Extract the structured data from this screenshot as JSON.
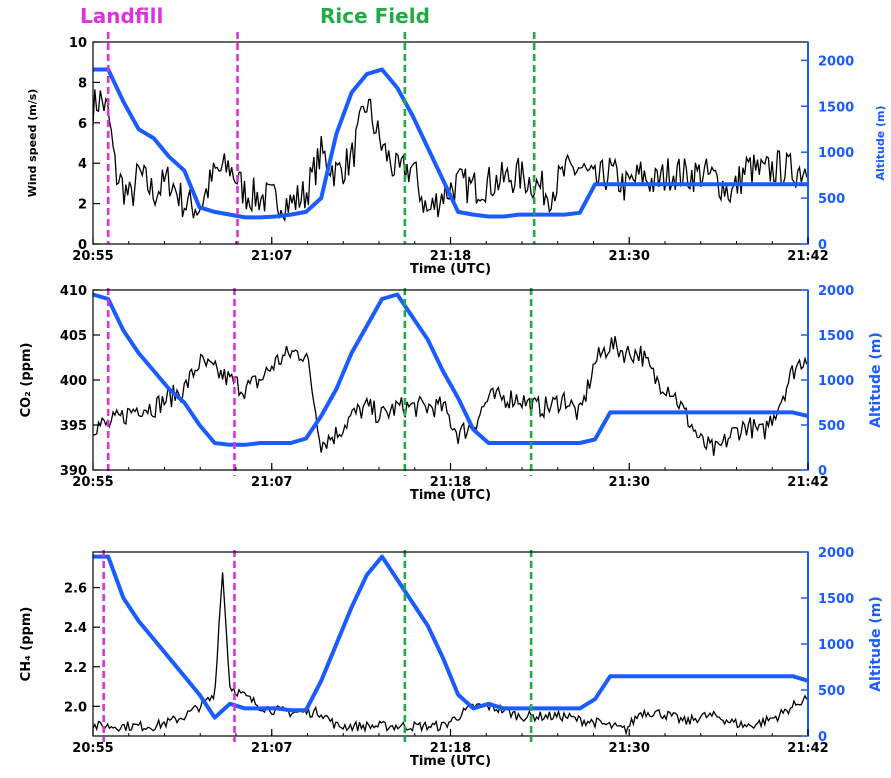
{
  "header": {
    "landfill_label": "Landfill",
    "rice_label": "Rice Field"
  },
  "colors": {
    "measurement": "#000000",
    "altitude": "#1a5cff",
    "landfill_marker": "#dd33dd",
    "rice_marker": "#22aa44",
    "axis_right": "#1a5cff"
  },
  "chart_data": [
    {
      "type": "line",
      "xlabel": "Time (UTC)",
      "xticks": [
        "20:55",
        "21:07",
        "21:18",
        "21:30",
        "21:42"
      ],
      "xlim_minutes_after_2055": [
        0,
        47
      ],
      "ylabel": "Wind speed (m/s)",
      "ylim": [
        0,
        10
      ],
      "yticks": [
        "0",
        "2",
        "4",
        "6",
        "8",
        "10"
      ],
      "y2label": "Altitude (m)",
      "y2lim": [
        0,
        2200
      ],
      "y2ticks": [
        "0",
        "500",
        "1000",
        "1500",
        "2000"
      ],
      "series": [
        {
          "axis": "left",
          "x": [
            0,
            0.5,
            1,
            1.5,
            2,
            2.5,
            3,
            4,
            5,
            6,
            7,
            8,
            9,
            10,
            11,
            12,
            13,
            14,
            15,
            16,
            17,
            18,
            19,
            20,
            21,
            22,
            23,
            24,
            25,
            26,
            27,
            28,
            29,
            30,
            31,
            32,
            33,
            34,
            35,
            36,
            37,
            38,
            39,
            40,
            41,
            42,
            43,
            44,
            45,
            46,
            47
          ],
          "y": [
            6.8,
            7.2,
            6.5,
            3.5,
            2.8,
            2.2,
            3.5,
            2.5,
            3.2,
            2.0,
            1.8,
            3.5,
            3.8,
            2.5,
            2.3,
            2.2,
            2.0,
            2.5,
            4.5,
            3.5,
            4.2,
            7.0,
            4.8,
            3.5,
            3.8,
            1.5,
            2.5,
            3.0,
            2.8,
            3.0,
            3.2,
            3.4,
            3.0,
            2.5,
            3.5,
            3.8,
            3.0,
            3.6,
            2.8,
            3.4,
            3.0,
            3.6,
            3.4,
            3.5,
            3.2,
            2.5,
            3.8,
            3.5,
            3.8,
            3.6,
            3.8
          ],
          "noise": 0.9
        },
        {
          "axis": "right",
          "x": [
            0,
            1,
            2,
            3,
            4,
            5,
            6,
            7,
            8,
            9,
            10,
            11,
            12,
            13,
            14,
            15,
            16,
            17,
            18,
            19,
            20,
            21,
            22,
            23,
            24,
            25,
            26,
            27,
            28,
            29,
            30,
            31,
            32,
            33,
            34,
            35,
            36,
            37,
            38,
            39,
            40,
            41,
            42,
            43,
            44,
            45,
            46,
            47
          ],
          "y": [
            1900,
            1900,
            1550,
            1250,
            1150,
            950,
            800,
            400,
            350,
            320,
            290,
            290,
            300,
            320,
            350,
            500,
            1200,
            1650,
            1850,
            1900,
            1700,
            1400,
            1050,
            700,
            350,
            320,
            300,
            300,
            320,
            320,
            320,
            320,
            340,
            650,
            650,
            650,
            650,
            650,
            650,
            650,
            650,
            650,
            650,
            650,
            650,
            650,
            650,
            650
          ],
          "noise": 0
        }
      ],
      "markers": [
        {
          "group": "landfill",
          "x": 1.0
        },
        {
          "group": "landfill",
          "x": 9.5
        },
        {
          "group": "rice",
          "x": 20.5
        },
        {
          "group": "rice",
          "x": 29.0
        }
      ]
    },
    {
      "type": "line",
      "xlabel": "Time (UTC)",
      "xticks": [
        "20:55",
        "21:07",
        "21:18",
        "21:30",
        "21:42"
      ],
      "xlim_minutes_after_2055": [
        0,
        47
      ],
      "ylabel": "CO₂ (ppm)",
      "ylim": [
        390,
        410
      ],
      "yticks": [
        "390",
        "395",
        "400",
        "405",
        "410"
      ],
      "y2label": "Altitude (m)",
      "y2lim": [
        0,
        2000
      ],
      "y2ticks": [
        "0",
        "500",
        "1000",
        "1500",
        "2000"
      ],
      "series": [
        {
          "axis": "left",
          "x": [
            0,
            0.5,
            1,
            2,
            3,
            4,
            5,
            6,
            7,
            8,
            9,
            10,
            11,
            12,
            13,
            14,
            15,
            16,
            17,
            18,
            19,
            20,
            21,
            22,
            23,
            24,
            25,
            26,
            27,
            28,
            29,
            30,
            31,
            32,
            33,
            34,
            35,
            36,
            37,
            38,
            39,
            40,
            41,
            42,
            43,
            44,
            45,
            46,
            47
          ],
          "y": [
            395,
            395,
            395,
            396,
            397,
            397,
            398,
            399,
            402,
            401,
            400,
            399,
            400,
            402,
            403,
            403,
            393,
            394,
            396,
            397,
            396,
            397,
            397,
            397,
            397,
            394,
            395,
            398,
            398,
            398,
            397,
            397,
            398,
            396,
            402,
            404,
            403,
            403,
            400,
            399,
            396,
            393,
            392,
            394,
            395,
            394,
            397,
            401,
            403
          ],
          "noise": 1.2
        },
        {
          "axis": "right",
          "x": [
            0,
            1,
            2,
            3,
            4,
            5,
            6,
            7,
            8,
            9,
            10,
            11,
            12,
            13,
            14,
            15,
            16,
            17,
            18,
            19,
            20,
            21,
            22,
            23,
            24,
            25,
            26,
            27,
            28,
            29,
            30,
            31,
            32,
            33,
            34,
            35,
            36,
            37,
            38,
            39,
            40,
            41,
            42,
            43,
            44,
            45,
            46,
            47
          ],
          "y": [
            1950,
            1900,
            1550,
            1300,
            1100,
            900,
            750,
            500,
            300,
            280,
            280,
            300,
            300,
            300,
            350,
            600,
            900,
            1300,
            1600,
            1900,
            1950,
            1700,
            1450,
            1100,
            800,
            450,
            300,
            300,
            300,
            300,
            300,
            300,
            300,
            340,
            640,
            640,
            640,
            640,
            640,
            640,
            640,
            640,
            640,
            640,
            640,
            640,
            640,
            600
          ],
          "noise": 0
        }
      ],
      "markers": [
        {
          "group": "landfill",
          "x": 1.0
        },
        {
          "group": "landfill",
          "x": 9.3
        },
        {
          "group": "rice",
          "x": 20.5
        },
        {
          "group": "rice",
          "x": 28.8
        }
      ]
    },
    {
      "type": "line",
      "xlabel": "Time (UTC)",
      "xticks": [
        "20:55",
        "21:07",
        "21:18",
        "21:30",
        "21:42"
      ],
      "xlim_minutes_after_2055": [
        0,
        47
      ],
      "ylabel": "CH₄ (ppm)",
      "ylim": [
        1.85,
        2.78
      ],
      "yticks": [
        "2.0",
        "2.2",
        "2.4",
        "2.6"
      ],
      "y2label": "Altitude (m)",
      "y2lim": [
        0,
        2000
      ],
      "y2ticks": [
        "0",
        "500",
        "1000",
        "1500",
        "2000"
      ],
      "series": [
        {
          "axis": "left",
          "x": [
            0,
            1,
            2,
            3,
            4,
            5,
            6,
            7,
            8,
            8.5,
            9,
            10,
            11,
            12,
            13,
            14,
            15,
            16,
            17,
            18,
            19,
            20,
            21,
            22,
            23,
            24,
            25,
            26,
            27,
            28,
            29,
            30,
            31,
            32,
            33,
            34,
            35,
            36,
            37,
            38,
            39,
            40,
            41,
            42,
            43,
            44,
            45,
            46,
            47
          ],
          "y": [
            1.9,
            1.9,
            1.9,
            1.9,
            1.9,
            1.92,
            1.95,
            2.0,
            2.05,
            2.7,
            2.1,
            2.05,
            2.0,
            1.98,
            1.97,
            1.97,
            1.97,
            1.9,
            1.9,
            1.9,
            1.9,
            1.9,
            1.9,
            1.9,
            1.9,
            1.95,
            2.0,
            2.0,
            1.98,
            1.95,
            1.95,
            1.95,
            1.95,
            1.93,
            1.92,
            1.9,
            1.88,
            1.97,
            1.97,
            1.95,
            1.92,
            1.95,
            1.95,
            1.92,
            1.9,
            1.92,
            1.95,
            2.0,
            2.05
          ],
          "noise": 0.025
        },
        {
          "axis": "right",
          "x": [
            0,
            1,
            2,
            3,
            4,
            5,
            6,
            7,
            8,
            9,
            10,
            11,
            12,
            13,
            14,
            15,
            16,
            17,
            18,
            19,
            20,
            21,
            22,
            23,
            24,
            25,
            26,
            27,
            28,
            29,
            30,
            31,
            32,
            33,
            34,
            35,
            36,
            37,
            38,
            39,
            40,
            41,
            42,
            43,
            44,
            45,
            46,
            47
          ],
          "y": [
            1950,
            1950,
            1500,
            1250,
            1050,
            850,
            650,
            450,
            200,
            350,
            300,
            300,
            300,
            280,
            280,
            600,
            1000,
            1400,
            1750,
            1950,
            1700,
            1450,
            1200,
            850,
            450,
            300,
            350,
            300,
            300,
            300,
            300,
            300,
            300,
            400,
            650,
            650,
            650,
            650,
            650,
            650,
            650,
            650,
            650,
            650,
            650,
            650,
            650,
            600
          ],
          "noise": 0
        }
      ],
      "markers": [
        {
          "group": "landfill",
          "x": 0.7
        },
        {
          "group": "landfill",
          "x": 9.3
        },
        {
          "group": "rice",
          "x": 20.5
        },
        {
          "group": "rice",
          "x": 28.8
        }
      ]
    }
  ]
}
